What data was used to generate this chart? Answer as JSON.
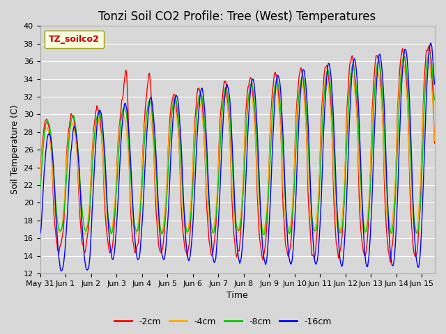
{
  "title": "Tonzi Soil CO2 Profile: Tree (West) Temperatures",
  "xlabel": "Time",
  "ylabel": "Soil Temperature (C)",
  "ylim": [
    12,
    40
  ],
  "yticks": [
    12,
    14,
    16,
    18,
    20,
    22,
    24,
    26,
    28,
    30,
    32,
    34,
    36,
    38,
    40
  ],
  "legend_label": "TZ_soilco2",
  "series_labels": [
    "-2cm",
    "-4cm",
    "-8cm",
    "-16cm"
  ],
  "series_colors": [
    "#ff0000",
    "#ffaa00",
    "#00cc00",
    "#0000ff"
  ],
  "background_color": "#d8d8d8",
  "plot_bg_color": "#d8d8d8",
  "grid_color": "#ffffff",
  "xtick_labels": [
    "May 31",
    "Jun 1",
    "Jun 2",
    "Jun 3",
    "Jun 4",
    "Jun 5",
    "Jun 6",
    "Jun 7",
    "Jun 8",
    "Jun 9",
    "Jun 10",
    "Jun 11",
    "Jun 12",
    "Jun 13",
    "Jun 14",
    "Jun 15"
  ],
  "title_fontsize": 12,
  "axis_fontsize": 9,
  "tick_fontsize": 8,
  "legend_fontsize": 9
}
